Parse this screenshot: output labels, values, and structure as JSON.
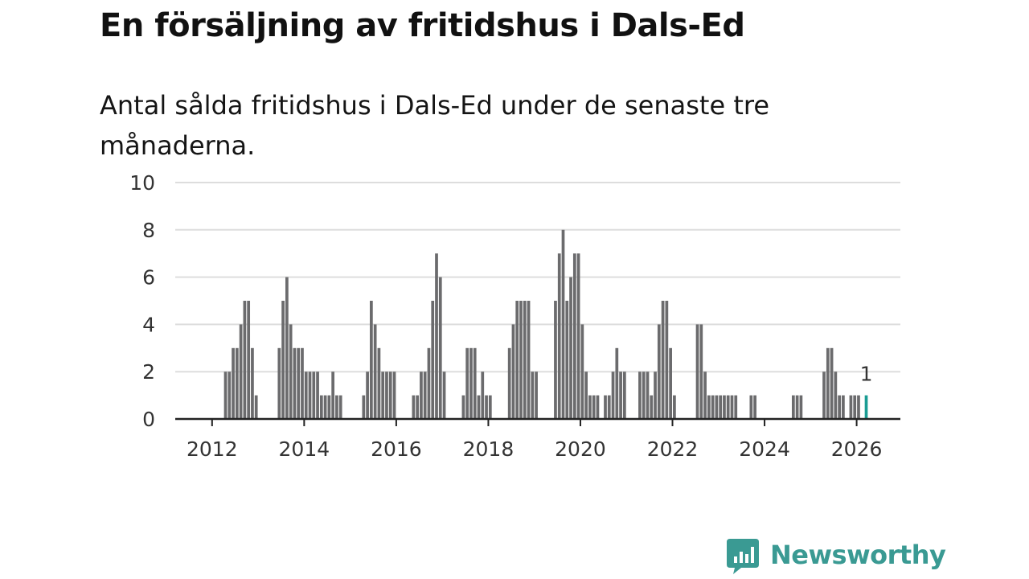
{
  "title": "En försäljning av fritidshus i Dals-Ed",
  "subtitle": "Antal sålda fritidshus i Dals-Ed under de senaste tre månaderna.",
  "brand": {
    "name": "Newsworthy",
    "color": "#3a9a93"
  },
  "colors": {
    "bar": "#6b6b6d",
    "highlight": "#1a9c93",
    "grid": "#dddddd",
    "axis": "#222222"
  },
  "chart_data": {
    "type": "bar",
    "title": "",
    "xlabel": "",
    "ylabel": "",
    "ylim": [
      0,
      10
    ],
    "xlim": [
      2011.2,
      2026.95
    ],
    "y_ticks": [
      0,
      2,
      4,
      6,
      8,
      10
    ],
    "x_ticks": [
      2012,
      2014,
      2016,
      2018,
      2020,
      2022,
      2024,
      2026
    ],
    "grid": true,
    "period": "monthly (rolling 3-month count)",
    "series": [
      {
        "values": [
          {
            "x": "2012-04",
            "y": 2
          },
          {
            "x": "2012-05",
            "y": 2
          },
          {
            "x": "2012-06",
            "y": 3
          },
          {
            "x": "2012-07",
            "y": 3
          },
          {
            "x": "2012-08",
            "y": 4
          },
          {
            "x": "2012-09",
            "y": 5
          },
          {
            "x": "2012-10",
            "y": 5
          },
          {
            "x": "2012-11",
            "y": 3
          },
          {
            "x": "2012-12",
            "y": 1
          },
          {
            "x": "2013-06",
            "y": 3
          },
          {
            "x": "2013-07",
            "y": 5
          },
          {
            "x": "2013-08",
            "y": 6
          },
          {
            "x": "2013-09",
            "y": 4
          },
          {
            "x": "2013-10",
            "y": 3
          },
          {
            "x": "2013-11",
            "y": 3
          },
          {
            "x": "2013-12",
            "y": 3
          },
          {
            "x": "2014-01",
            "y": 2
          },
          {
            "x": "2014-02",
            "y": 2
          },
          {
            "x": "2014-03",
            "y": 2
          },
          {
            "x": "2014-04",
            "y": 2
          },
          {
            "x": "2014-05",
            "y": 1
          },
          {
            "x": "2014-06",
            "y": 1
          },
          {
            "x": "2014-07",
            "y": 1
          },
          {
            "x": "2014-08",
            "y": 2
          },
          {
            "x": "2014-09",
            "y": 1
          },
          {
            "x": "2014-10",
            "y": 1
          },
          {
            "x": "2015-04",
            "y": 1
          },
          {
            "x": "2015-05",
            "y": 2
          },
          {
            "x": "2015-06",
            "y": 5
          },
          {
            "x": "2015-07",
            "y": 4
          },
          {
            "x": "2015-08",
            "y": 3
          },
          {
            "x": "2015-09",
            "y": 2
          },
          {
            "x": "2015-10",
            "y": 2
          },
          {
            "x": "2015-11",
            "y": 2
          },
          {
            "x": "2015-12",
            "y": 2
          },
          {
            "x": "2016-05",
            "y": 1
          },
          {
            "x": "2016-06",
            "y": 1
          },
          {
            "x": "2016-07",
            "y": 2
          },
          {
            "x": "2016-08",
            "y": 2
          },
          {
            "x": "2016-09",
            "y": 3
          },
          {
            "x": "2016-10",
            "y": 5
          },
          {
            "x": "2016-11",
            "y": 7
          },
          {
            "x": "2016-12",
            "y": 6
          },
          {
            "x": "2017-01",
            "y": 2
          },
          {
            "x": "2017-06",
            "y": 1
          },
          {
            "x": "2017-07",
            "y": 3
          },
          {
            "x": "2017-08",
            "y": 3
          },
          {
            "x": "2017-09",
            "y": 3
          },
          {
            "x": "2017-10",
            "y": 1
          },
          {
            "x": "2017-11",
            "y": 2
          },
          {
            "x": "2017-12",
            "y": 1
          },
          {
            "x": "2018-01",
            "y": 1
          },
          {
            "x": "2018-06",
            "y": 3
          },
          {
            "x": "2018-07",
            "y": 4
          },
          {
            "x": "2018-08",
            "y": 5
          },
          {
            "x": "2018-09",
            "y": 5
          },
          {
            "x": "2018-10",
            "y": 5
          },
          {
            "x": "2018-11",
            "y": 5
          },
          {
            "x": "2018-12",
            "y": 2
          },
          {
            "x": "2019-01",
            "y": 2
          },
          {
            "x": "2019-06",
            "y": 5
          },
          {
            "x": "2019-07",
            "y": 7
          },
          {
            "x": "2019-08",
            "y": 8
          },
          {
            "x": "2019-09",
            "y": 5
          },
          {
            "x": "2019-10",
            "y": 6
          },
          {
            "x": "2019-11",
            "y": 7
          },
          {
            "x": "2019-12",
            "y": 7
          },
          {
            "x": "2020-01",
            "y": 4
          },
          {
            "x": "2020-02",
            "y": 2
          },
          {
            "x": "2020-03",
            "y": 1
          },
          {
            "x": "2020-04",
            "y": 1
          },
          {
            "x": "2020-05",
            "y": 1
          },
          {
            "x": "2020-07",
            "y": 1
          },
          {
            "x": "2020-08",
            "y": 1
          },
          {
            "x": "2020-09",
            "y": 2
          },
          {
            "x": "2020-10",
            "y": 3
          },
          {
            "x": "2020-11",
            "y": 2
          },
          {
            "x": "2020-12",
            "y": 2
          },
          {
            "x": "2021-04",
            "y": 2
          },
          {
            "x": "2021-05",
            "y": 2
          },
          {
            "x": "2021-06",
            "y": 2
          },
          {
            "x": "2021-07",
            "y": 1
          },
          {
            "x": "2021-08",
            "y": 2
          },
          {
            "x": "2021-09",
            "y": 4
          },
          {
            "x": "2021-10",
            "y": 5
          },
          {
            "x": "2021-11",
            "y": 5
          },
          {
            "x": "2021-12",
            "y": 3
          },
          {
            "x": "2022-01",
            "y": 1
          },
          {
            "x": "2022-07",
            "y": 4
          },
          {
            "x": "2022-08",
            "y": 4
          },
          {
            "x": "2022-09",
            "y": 2
          },
          {
            "x": "2022-10",
            "y": 1
          },
          {
            "x": "2022-11",
            "y": 1
          },
          {
            "x": "2022-12",
            "y": 1
          },
          {
            "x": "2023-01",
            "y": 1
          },
          {
            "x": "2023-02",
            "y": 1
          },
          {
            "x": "2023-03",
            "y": 1
          },
          {
            "x": "2023-04",
            "y": 1
          },
          {
            "x": "2023-05",
            "y": 1
          },
          {
            "x": "2023-09",
            "y": 1
          },
          {
            "x": "2023-10",
            "y": 1
          },
          {
            "x": "2024-08",
            "y": 1
          },
          {
            "x": "2024-09",
            "y": 1
          },
          {
            "x": "2024-10",
            "y": 1
          },
          {
            "x": "2025-04",
            "y": 2
          },
          {
            "x": "2025-05",
            "y": 3
          },
          {
            "x": "2025-06",
            "y": 3
          },
          {
            "x": "2025-07",
            "y": 2
          },
          {
            "x": "2025-08",
            "y": 1
          },
          {
            "x": "2025-09",
            "y": 1
          },
          {
            "x": "2025-11",
            "y": 1
          },
          {
            "x": "2025-12",
            "y": 1
          },
          {
            "x": "2026-01",
            "y": 1
          },
          {
            "x": "2026-03",
            "y": 1,
            "highlight": true
          }
        ]
      }
    ],
    "annotations": [
      {
        "x": "2026-03",
        "y": 1,
        "text": "1"
      }
    ]
  }
}
